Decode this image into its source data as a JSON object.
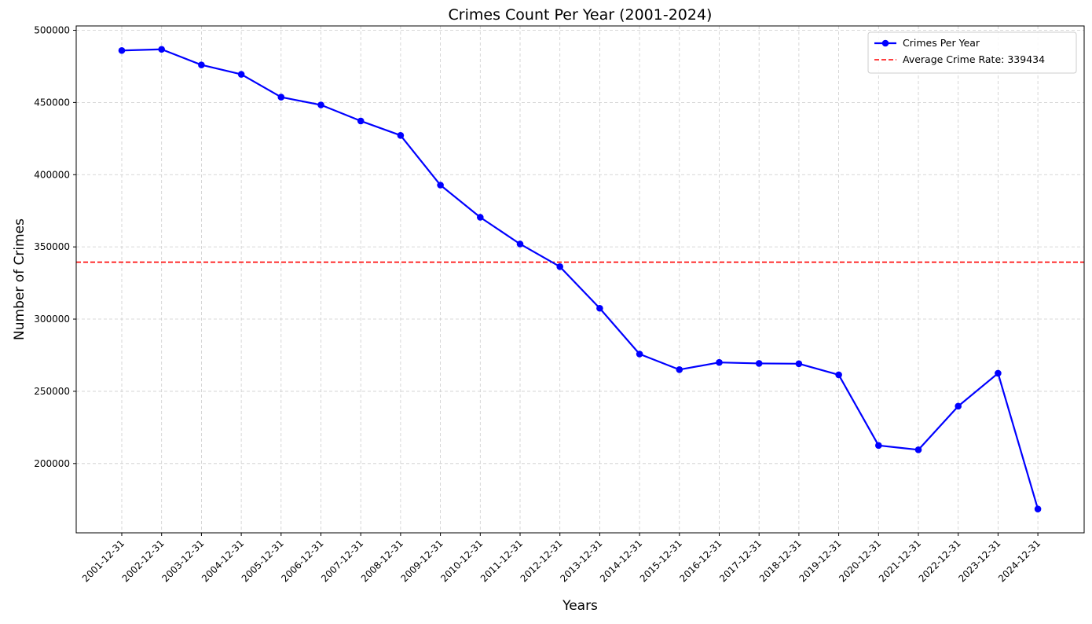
{
  "chart_data": {
    "type": "line",
    "title": "Crimes Count Per Year (2001-2024)",
    "xlabel": "Years",
    "ylabel": "Number of Crimes",
    "categories": [
      "2001-12-31",
      "2002-12-31",
      "2003-12-31",
      "2004-12-31",
      "2005-12-31",
      "2006-12-31",
      "2007-12-31",
      "2008-12-31",
      "2009-12-31",
      "2010-12-31",
      "2011-12-31",
      "2012-12-31",
      "2013-12-31",
      "2014-12-31",
      "2015-12-31",
      "2016-12-31",
      "2017-12-31",
      "2018-12-31",
      "2019-12-31",
      "2020-12-31",
      "2021-12-31",
      "2022-12-31",
      "2023-12-31",
      "2024-12-31"
    ],
    "series": [
      {
        "name": "Crimes Per Year",
        "color": "#0000ff",
        "marker": "circle",
        "values": [
          486000,
          486800,
          476000,
          469500,
          453700,
          448300,
          437200,
          427200,
          392800,
          370500,
          352000,
          336300,
          307500,
          275800,
          265000,
          270000,
          269300,
          269100,
          261400,
          212500,
          209500,
          239700,
          262500,
          168500
        ]
      }
    ],
    "reference_lines": [
      {
        "name": "Average Crime Rate: 339434",
        "value": 339434,
        "color": "#ff0000",
        "style": "dashed"
      }
    ],
    "ylim": [
      152000,
      503000
    ],
    "yticks": [
      200000,
      250000,
      300000,
      350000,
      400000,
      450000,
      500000
    ],
    "grid": true,
    "legend_position": "top-right"
  }
}
